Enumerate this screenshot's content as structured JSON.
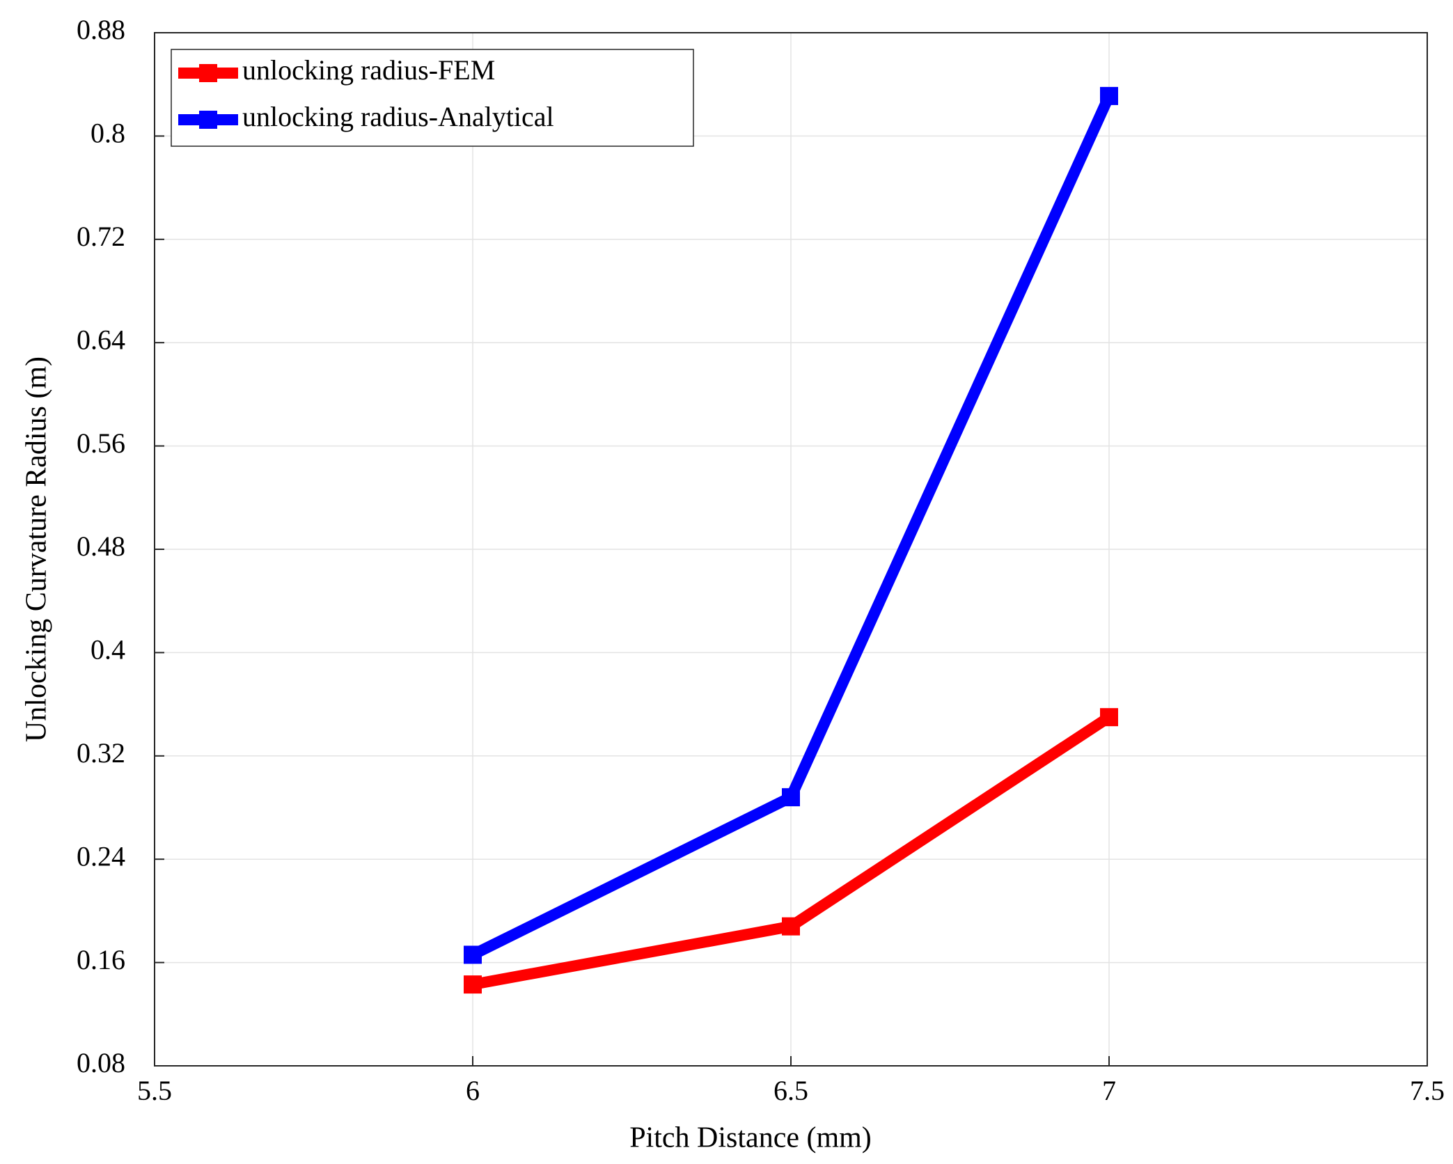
{
  "chart_data": {
    "type": "line",
    "xlabel": "Pitch Distance (mm)",
    "ylabel": "Unlocking Curvature Radius (m)",
    "x": [
      6,
      6.5,
      7
    ],
    "series": [
      {
        "name": "unlocking radius-FEM",
        "color": "#ff0000",
        "values": [
          0.143,
          0.188,
          0.35
        ]
      },
      {
        "name": "unlocking radius-Analytical",
        "color": "#0000ff",
        "values": [
          0.166,
          0.288,
          0.831
        ]
      }
    ],
    "xlim": [
      5.5,
      7.5
    ],
    "xticks": [
      5.5,
      6,
      6.5,
      7,
      7.5
    ],
    "ylim": [
      0.08,
      0.88
    ],
    "yticks": [
      0.08,
      0.16,
      0.24,
      0.32,
      0.4,
      0.48,
      0.56,
      0.64,
      0.72,
      0.8,
      0.88
    ],
    "grid": true,
    "legend": "upper-left"
  }
}
